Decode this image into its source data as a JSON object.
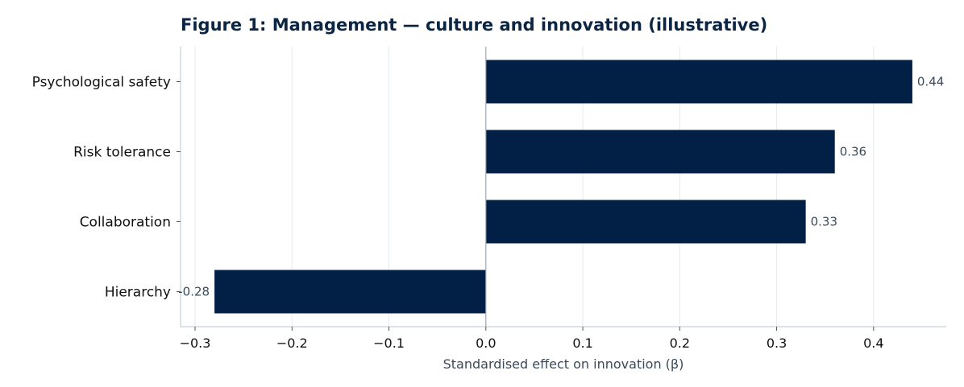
{
  "chart_data": {
    "type": "bar",
    "orientation": "horizontal",
    "title": "Figure 1: Management — culture and innovation (illustrative)",
    "xlabel": "Standardised effect on innovation (β)",
    "ylabel": "",
    "categories": [
      "Psychological safety",
      "Risk tolerance",
      "Collaboration",
      "Hierarchy"
    ],
    "values": [
      0.44,
      0.36,
      0.33,
      -0.28
    ],
    "value_labels": [
      "0.44",
      "0.36",
      "0.33",
      "-0.28"
    ],
    "xlim": [
      -0.315,
      0.475
    ],
    "xticks": [
      -0.3,
      -0.2,
      -0.1,
      0.0,
      0.1,
      0.2,
      0.3,
      0.4
    ],
    "xtick_labels": [
      "−0.3",
      "−0.2",
      "−0.1",
      "0.0",
      "0.1",
      "0.2",
      "0.3",
      "0.4"
    ],
    "grid": "vertical",
    "legend": "none",
    "colors": {
      "bar": "#022046",
      "title": "#0b2545",
      "grid": "#e4eaf0",
      "axis": "#c8d0d8",
      "zero_line": "#9aa8b6",
      "value_label": "#3a4a5a"
    }
  }
}
